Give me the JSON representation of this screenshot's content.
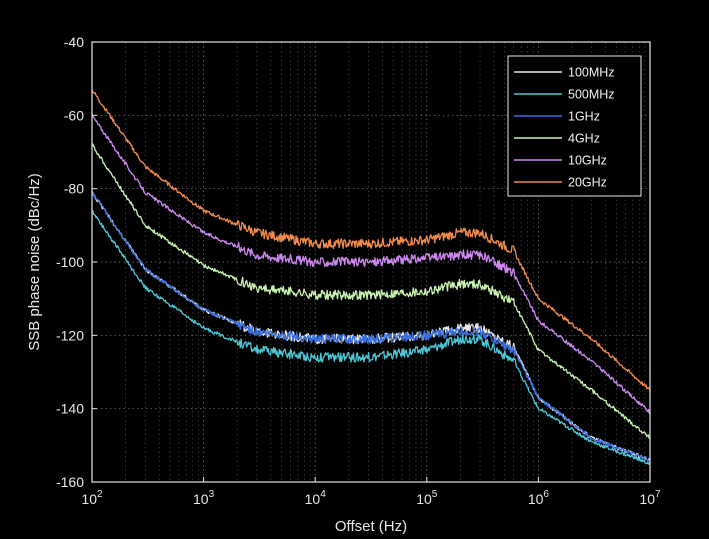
{
  "chart_data": {
    "type": "line",
    "title": "",
    "xlabel": "Offset (Hz)",
    "ylabel": "SSB phase noise (dBc/Hz)",
    "xscale": "log",
    "xlim": [
      100,
      10000000
    ],
    "ylim": [
      -160,
      -40
    ],
    "xticks": [
      {
        "value": 100,
        "base": "10",
        "exp": "2"
      },
      {
        "value": 1000,
        "base": "10",
        "exp": "3"
      },
      {
        "value": 10000,
        "base": "10",
        "exp": "4"
      },
      {
        "value": 100000,
        "base": "10",
        "exp": "5"
      },
      {
        "value": 1000000,
        "base": "10",
        "exp": "6"
      },
      {
        "value": 10000000,
        "base": "10",
        "exp": "7"
      }
    ],
    "yticks": [
      {
        "value": -40,
        "label": "-40"
      },
      {
        "value": -60,
        "label": "-60"
      },
      {
        "value": -80,
        "label": "-80"
      },
      {
        "value": -100,
        "label": "-100"
      },
      {
        "value": -120,
        "label": "-120"
      },
      {
        "value": -140,
        "label": "-140"
      },
      {
        "value": -160,
        "label": "-160"
      }
    ],
    "grid": "dotted",
    "legend_position": "top-right",
    "x": [
      100,
      300,
      1000,
      3000,
      10000,
      30000,
      100000,
      200000,
      300000,
      600000,
      1000000,
      3000000,
      10000000
    ],
    "series": [
      {
        "name": "100MHz",
        "color": "#e8e8e8",
        "values": [
          -81,
          -102,
          -113,
          -119,
          -121,
          -121,
          -120,
          -118,
          -118,
          -123,
          -137,
          -148,
          -154
        ]
      },
      {
        "name": "500MHz",
        "color": "#4dc6d6",
        "values": [
          -86,
          -107,
          -118,
          -124,
          -126,
          -126,
          -124,
          -121,
          -121,
          -127,
          -140,
          -149,
          -155
        ]
      },
      {
        "name": "1GHz",
        "color": "#3a6fe0",
        "values": [
          -81,
          -102,
          -113,
          -119,
          -121,
          -121,
          -120,
          -119,
          -119,
          -124,
          -137,
          -148,
          -154
        ]
      },
      {
        "name": "4GHz",
        "color": "#c8f2b0",
        "values": [
          -68,
          -90,
          -101,
          -107,
          -109,
          -109,
          -108,
          -106,
          -106,
          -111,
          -124,
          -135,
          -148
        ]
      },
      {
        "name": "10GHz",
        "color": "#cc88f0",
        "values": [
          -60,
          -81,
          -92,
          -98,
          -100,
          -100,
          -99,
          -98,
          -98,
          -103,
          -116,
          -127,
          -141
        ]
      },
      {
        "name": "20GHz",
        "color": "#f08a4b",
        "values": [
          -53,
          -74,
          -86,
          -92,
          -95,
          -95,
          -94,
          -92,
          -92,
          -97,
          -110,
          -121,
          -135
        ]
      }
    ]
  }
}
